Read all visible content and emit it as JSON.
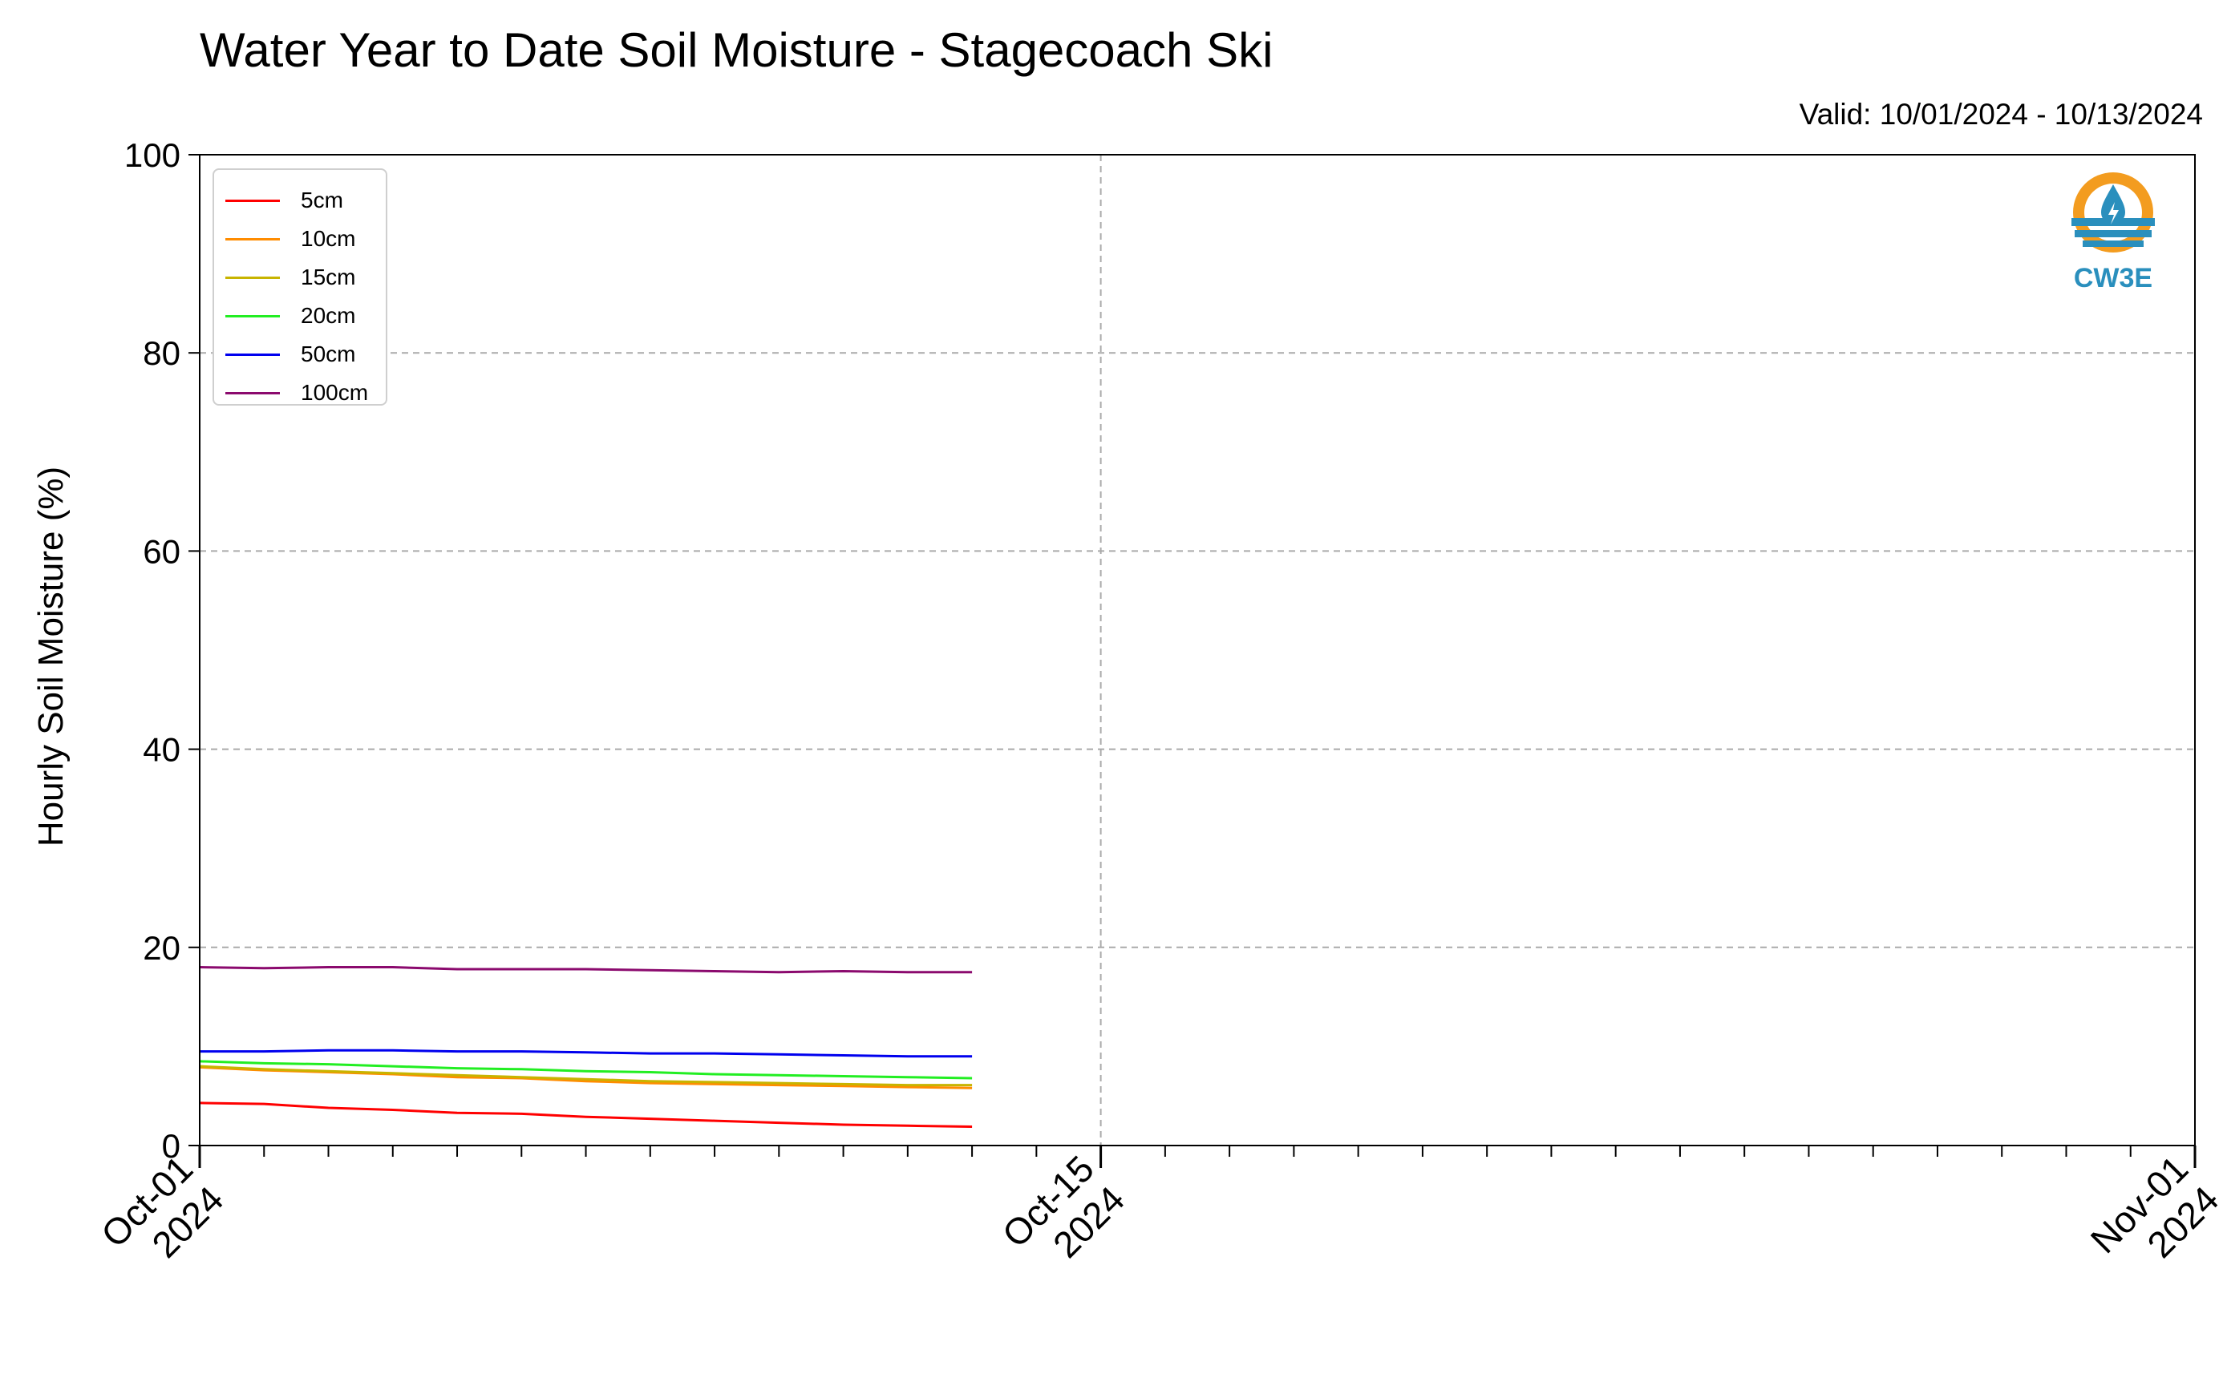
{
  "chart_data": {
    "type": "line",
    "title": "Water Year to Date Soil Moisture - Stagecoach Ski",
    "subtitle": "Valid: 10/01/2024 - 10/13/2024",
    "ylabel": "Hourly Soil Moisture (%)",
    "xlabel": "",
    "ylim": [
      0,
      100
    ],
    "xlim": [
      "2024-10-01",
      "2024-11-01"
    ],
    "yticks": [
      "0",
      "20",
      "40",
      "60",
      "80",
      "100"
    ],
    "xticks": [
      {
        "date": "2024-10-01",
        "line1": "Oct-01",
        "line2": "2024"
      },
      {
        "date": "2024-10-15",
        "line1": "Oct-15",
        "line2": "2024"
      },
      {
        "date": "2024-11-01",
        "line1": "Nov-01",
        "line2": "2024"
      }
    ],
    "grid": true,
    "legend_position": "top-left",
    "series": [
      {
        "name": "5cm",
        "color": "#ff0000",
        "x": [
          "2024-10-01",
          "2024-10-02",
          "2024-10-03",
          "2024-10-04",
          "2024-10-05",
          "2024-10-06",
          "2024-10-07",
          "2024-10-08",
          "2024-10-09",
          "2024-10-10",
          "2024-10-11",
          "2024-10-12",
          "2024-10-13"
        ],
        "y": [
          4.3,
          4.2,
          3.8,
          3.6,
          3.3,
          3.2,
          2.9,
          2.7,
          2.5,
          2.3,
          2.1,
          2.0,
          1.9
        ]
      },
      {
        "name": "10cm",
        "color": "#ff8c00",
        "x": [
          "2024-10-01",
          "2024-10-02",
          "2024-10-03",
          "2024-10-04",
          "2024-10-05",
          "2024-10-06",
          "2024-10-07",
          "2024-10-08",
          "2024-10-09",
          "2024-10-10",
          "2024-10-11",
          "2024-10-12",
          "2024-10-13"
        ],
        "y": [
          7.9,
          7.6,
          7.4,
          7.2,
          6.9,
          6.8,
          6.5,
          6.3,
          6.2,
          6.1,
          6.0,
          5.9,
          5.8
        ]
      },
      {
        "name": "15cm",
        "color": "#c8b400",
        "x": [
          "2024-10-01",
          "2024-10-02",
          "2024-10-03",
          "2024-10-04",
          "2024-10-05",
          "2024-10-06",
          "2024-10-07",
          "2024-10-08",
          "2024-10-09",
          "2024-10-10",
          "2024-10-11",
          "2024-10-12",
          "2024-10-13"
        ],
        "y": [
          8.0,
          7.7,
          7.5,
          7.3,
          7.1,
          6.9,
          6.7,
          6.5,
          6.4,
          6.3,
          6.2,
          6.1,
          6.1
        ]
      },
      {
        "name": "20cm",
        "color": "#22ee22",
        "x": [
          "2024-10-01",
          "2024-10-02",
          "2024-10-03",
          "2024-10-04",
          "2024-10-05",
          "2024-10-06",
          "2024-10-07",
          "2024-10-08",
          "2024-10-09",
          "2024-10-10",
          "2024-10-11",
          "2024-10-12",
          "2024-10-13"
        ],
        "y": [
          8.5,
          8.3,
          8.2,
          8.0,
          7.8,
          7.7,
          7.5,
          7.4,
          7.2,
          7.1,
          7.0,
          6.9,
          6.8
        ]
      },
      {
        "name": "50cm",
        "color": "#0000ee",
        "x": [
          "2024-10-01",
          "2024-10-02",
          "2024-10-03",
          "2024-10-04",
          "2024-10-05",
          "2024-10-06",
          "2024-10-07",
          "2024-10-08",
          "2024-10-09",
          "2024-10-10",
          "2024-10-11",
          "2024-10-12",
          "2024-10-13"
        ],
        "y": [
          9.5,
          9.5,
          9.6,
          9.6,
          9.5,
          9.5,
          9.4,
          9.3,
          9.3,
          9.2,
          9.1,
          9.0,
          9.0
        ]
      },
      {
        "name": "100cm",
        "color": "#8b0a6e",
        "x": [
          "2024-10-01",
          "2024-10-02",
          "2024-10-03",
          "2024-10-04",
          "2024-10-05",
          "2024-10-06",
          "2024-10-07",
          "2024-10-08",
          "2024-10-09",
          "2024-10-10",
          "2024-10-11",
          "2024-10-12",
          "2024-10-13"
        ],
        "y": [
          18.0,
          17.9,
          18.0,
          18.0,
          17.8,
          17.8,
          17.8,
          17.7,
          17.6,
          17.5,
          17.6,
          17.5,
          17.5
        ]
      }
    ]
  },
  "logo": {
    "text": "CW3E",
    "name": "cw3e-logo-icon",
    "color": "#2a8fbd",
    "accent": "#f39c1f"
  }
}
